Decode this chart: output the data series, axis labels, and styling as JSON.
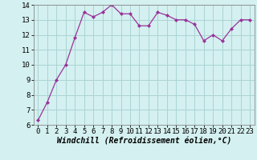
{
  "x": [
    0,
    1,
    2,
    3,
    4,
    5,
    6,
    7,
    8,
    9,
    10,
    11,
    12,
    13,
    14,
    15,
    16,
    17,
    18,
    19,
    20,
    21,
    22,
    23
  ],
  "y": [
    6.3,
    7.5,
    9.0,
    10.0,
    11.8,
    13.5,
    13.2,
    13.5,
    14.0,
    13.4,
    13.4,
    12.6,
    12.6,
    13.5,
    13.3,
    13.0,
    13.0,
    12.7,
    11.6,
    12.0,
    11.6,
    12.4,
    13.0,
    13.0
  ],
  "line_color": "#993399",
  "marker": "D",
  "marker_size": 2,
  "bg_color": "#d4f0f0",
  "grid_color": "#aad4d4",
  "xlabel": "Windchill (Refroidissement éolien,°C)",
  "ylim": [
    6,
    14
  ],
  "yticks": [
    6,
    7,
    8,
    9,
    10,
    11,
    12,
    13,
    14
  ],
  "xticks": [
    0,
    1,
    2,
    3,
    4,
    5,
    6,
    7,
    8,
    9,
    10,
    11,
    12,
    13,
    14,
    15,
    16,
    17,
    18,
    19,
    20,
    21,
    22,
    23
  ],
  "tick_labelsize": 6.5,
  "xlabel_fontsize": 7,
  "spine_color": "#888888",
  "fig_bg_color": "#d4f0f0"
}
